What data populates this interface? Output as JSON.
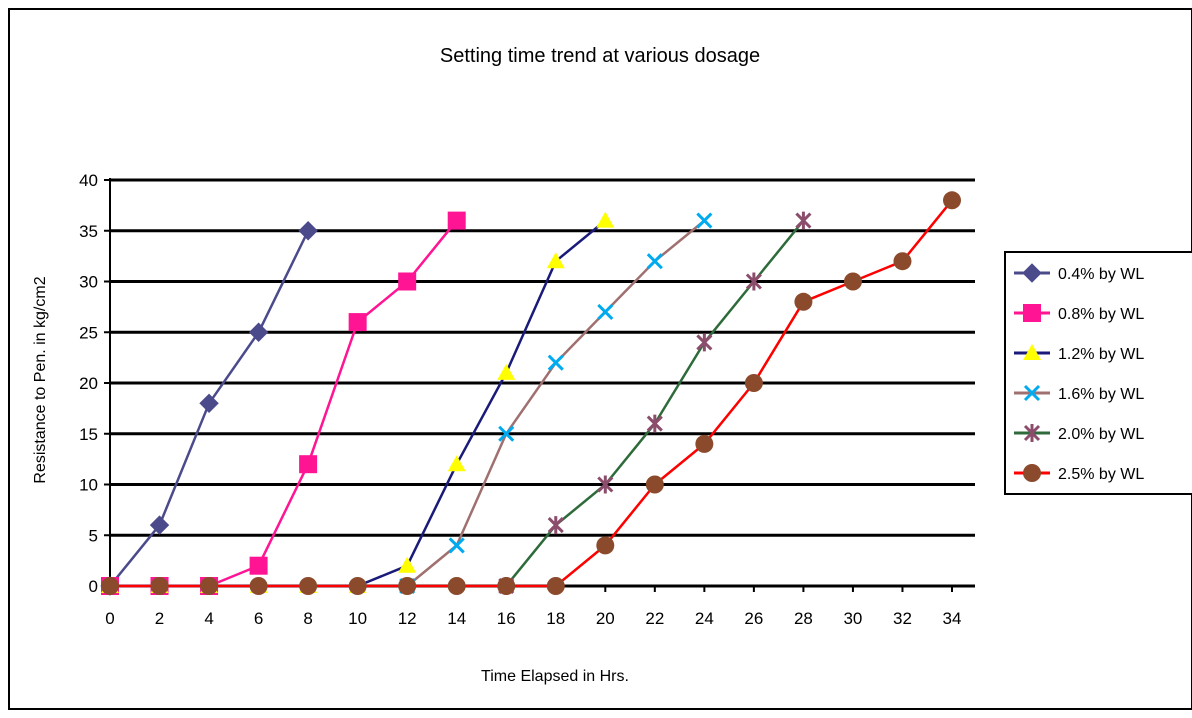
{
  "chart_data": {
    "type": "line",
    "title": "Setting time trend at various dosage",
    "xlabel": "Time Elapsed in Hrs.",
    "ylabel": "Resistance to Pen. in kg/cm2",
    "xlim": [
      0,
      34
    ],
    "ylim": [
      0,
      40
    ],
    "xticks": [
      0,
      2,
      4,
      6,
      8,
      10,
      12,
      14,
      16,
      18,
      20,
      22,
      24,
      26,
      28,
      30,
      32,
      34
    ],
    "yticks": [
      0,
      5,
      10,
      15,
      20,
      25,
      30,
      35,
      40
    ],
    "grid": "horizontal",
    "legend_position": "right",
    "series": [
      {
        "name": "0.4% by WL",
        "color": "#4b4b8c",
        "marker": "diamond",
        "points": [
          [
            0,
            0
          ],
          [
            2,
            6
          ],
          [
            4,
            18
          ],
          [
            6,
            25
          ],
          [
            8,
            35
          ]
        ]
      },
      {
        "name": "0.8% by WL",
        "color": "#ff1493",
        "marker": "square",
        "points": [
          [
            0,
            0
          ],
          [
            2,
            0
          ],
          [
            4,
            0
          ],
          [
            6,
            2
          ],
          [
            8,
            12
          ],
          [
            10,
            26
          ],
          [
            12,
            30
          ],
          [
            14,
            36
          ]
        ]
      },
      {
        "name": "1.2% by WL",
        "color": "#1a1a7a",
        "marker": "triangle",
        "marker_color": "#ffff00",
        "points": [
          [
            0,
            0
          ],
          [
            2,
            0
          ],
          [
            4,
            0
          ],
          [
            6,
            0
          ],
          [
            8,
            0
          ],
          [
            10,
            0
          ],
          [
            12,
            2
          ],
          [
            14,
            12
          ],
          [
            16,
            21
          ],
          [
            18,
            32
          ],
          [
            20,
            36
          ]
        ]
      },
      {
        "name": "1.6% by WL",
        "color": "#a07070",
        "marker": "x",
        "marker_color": "#00aaee",
        "points": [
          [
            12,
            0
          ],
          [
            14,
            4
          ],
          [
            16,
            15
          ],
          [
            18,
            22
          ],
          [
            20,
            27
          ],
          [
            22,
            32
          ],
          [
            24,
            36
          ]
        ]
      },
      {
        "name": "2.0% by WL",
        "color": "#2e6b3a",
        "marker": "star",
        "marker_color": "#8b4d6b",
        "points": [
          [
            16,
            0
          ],
          [
            18,
            6
          ],
          [
            20,
            10
          ],
          [
            22,
            16
          ],
          [
            24,
            24
          ],
          [
            26,
            30
          ],
          [
            28,
            36
          ]
        ]
      },
      {
        "name": "2.5% by WL",
        "color": "#ff0000",
        "marker": "circle",
        "marker_color": "#8b4a2b",
        "points": [
          [
            0,
            0
          ],
          [
            2,
            0
          ],
          [
            4,
            0
          ],
          [
            6,
            0
          ],
          [
            8,
            0
          ],
          [
            10,
            0
          ],
          [
            12,
            0
          ],
          [
            14,
            0
          ],
          [
            16,
            0
          ],
          [
            18,
            0
          ],
          [
            20,
            4
          ],
          [
            22,
            10
          ],
          [
            24,
            14
          ],
          [
            26,
            20
          ],
          [
            28,
            28
          ],
          [
            30,
            30
          ],
          [
            32,
            32
          ],
          [
            34,
            38
          ]
        ]
      }
    ]
  }
}
